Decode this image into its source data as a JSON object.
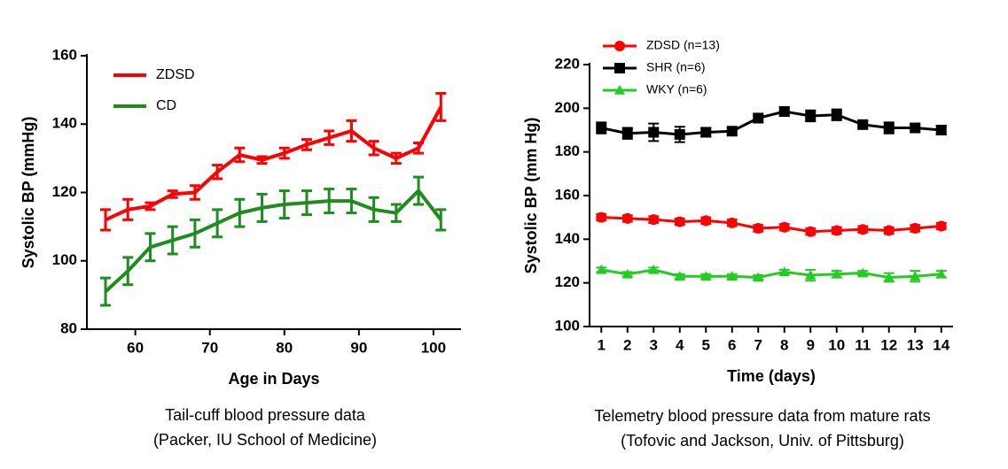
{
  "chart_data": [
    {
      "type": "line",
      "xlabel": "Age in Days",
      "ylabel": "Systolic BP (mmHg)",
      "caption": [
        "Tail-cuff blood pressure data",
        "(Packer, IU School  of Medicine)"
      ],
      "x": [
        56,
        59,
        62,
        65,
        68,
        71,
        74,
        77,
        80,
        83,
        86,
        89,
        92,
        95,
        98,
        101
      ],
      "series": [
        {
          "name": "ZDSD",
          "color": "#ff0000",
          "marker": "none",
          "values": [
            112,
            115,
            116,
            119.5,
            120,
            126,
            131,
            129.5,
            131.5,
            134,
            136,
            138,
            133,
            130,
            133,
            145
          ],
          "errors": [
            3,
            3,
            1,
            1,
            2,
            2,
            2,
            1,
            1.5,
            1.5,
            2,
            3,
            2,
            1.5,
            1.5,
            4
          ]
        },
        {
          "name": "CD",
          "color": "#1e8c1e",
          "marker": "none",
          "values": [
            91,
            97,
            104,
            106,
            108,
            111,
            114,
            115.5,
            116.5,
            117,
            117.5,
            117.5,
            115,
            114,
            120.5,
            112
          ],
          "errors": [
            4,
            4,
            4,
            4,
            4,
            4,
            4,
            4,
            4,
            3.5,
            3.5,
            3.5,
            3.5,
            2.5,
            4,
            3
          ]
        }
      ],
      "xlim": [
        53.5,
        103.7
      ],
      "xticks": [
        60,
        70,
        80,
        90,
        100
      ],
      "ylim": [
        80,
        160
      ],
      "yticks": [
        80,
        100,
        120,
        140,
        160
      ],
      "legend": "upper left"
    },
    {
      "type": "line",
      "xlabel": "Time (days)",
      "ylabel": "Systolic BP (mm Hg)",
      "caption": [
        "Telemetry blood pressure data from mature rats",
        "(Tofovic and Jackson, Univ. of Pittsburg)"
      ],
      "x": [
        1,
        2,
        3,
        4,
        5,
        6,
        7,
        8,
        9,
        10,
        11,
        12,
        13,
        14
      ],
      "series": [
        {
          "name": "ZDSD (n=13)",
          "color": "#ff0000",
          "marker": "circle",
          "values": [
            150,
            149.5,
            149,
            148,
            148.5,
            147.5,
            145,
            145.5,
            143.5,
            144,
            144.5,
            144,
            145,
            146
          ],
          "errors": [
            1.5,
            1.5,
            1.5,
            1.5,
            1.5,
            1.5,
            1.5,
            1.5,
            1.5,
            1.5,
            1.5,
            1.5,
            1.5,
            1.5
          ]
        },
        {
          "name": "SHR (n=6)",
          "color": "#000000",
          "marker": "square",
          "values": [
            191,
            188.5,
            189,
            188,
            189,
            189.5,
            195.5,
            198.5,
            196.5,
            197,
            192.5,
            191,
            191,
            190
          ],
          "errors": [
            2.5,
            2.5,
            4,
            3.5,
            2,
            1.5,
            2,
            2,
            2.5,
            2.5,
            1.5,
            2.5,
            1.5,
            2
          ]
        },
        {
          "name": "WKY (n=6)",
          "color": "#22cc22",
          "marker": "triangle",
          "values": [
            126,
            124,
            126,
            123,
            123,
            123,
            122.5,
            125,
            123.5,
            124,
            124.5,
            122.5,
            123,
            124
          ],
          "errors": [
            1,
            1,
            1,
            1,
            1,
            1,
            1,
            1,
            2.5,
            1.5,
            1,
            2,
            2.5,
            1.5
          ]
        }
      ],
      "xlim": [
        0.55,
        14.45
      ],
      "xticks": [
        1,
        2,
        3,
        4,
        5,
        6,
        7,
        8,
        9,
        10,
        11,
        12,
        13,
        14
      ],
      "ylim": [
        100,
        220
      ],
      "yticks": [
        100,
        120,
        140,
        160,
        180,
        200,
        220
      ],
      "legend": "upper left"
    }
  ]
}
